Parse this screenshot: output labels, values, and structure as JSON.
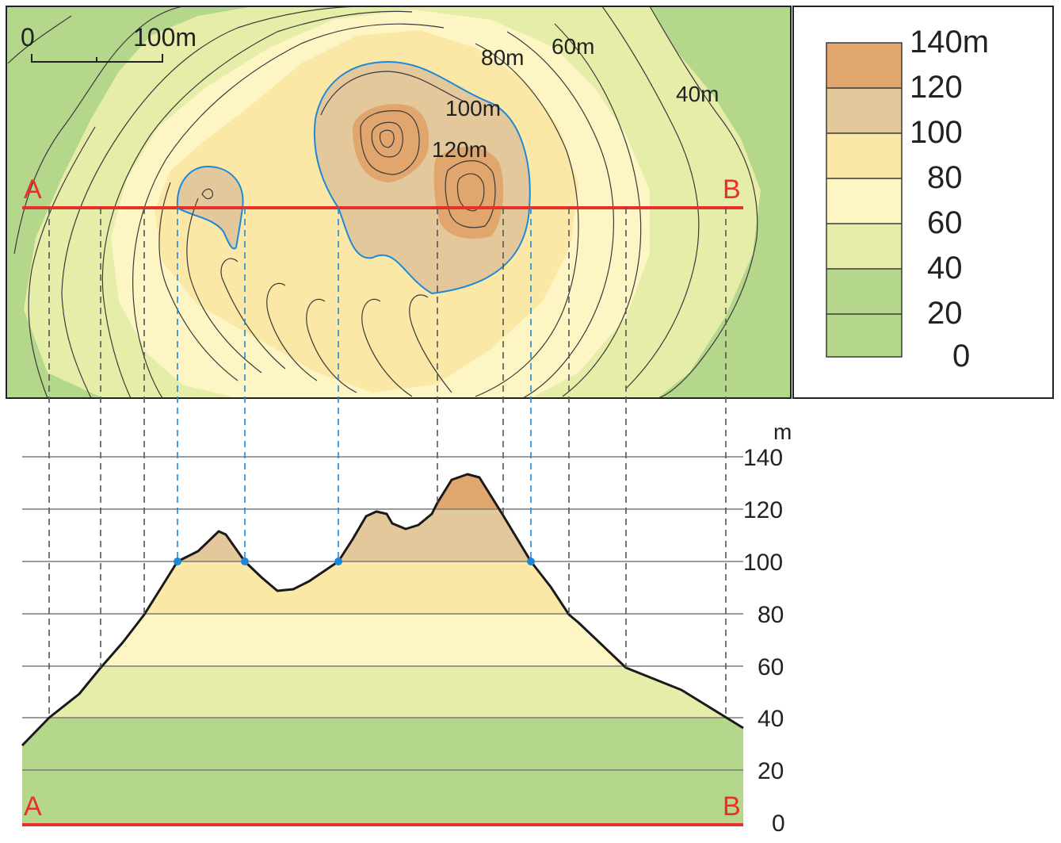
{
  "map": {
    "scale_start": "0",
    "scale_end": "100m",
    "point_a": "A",
    "point_b": "B",
    "contour_labels": [
      "80m",
      "60m",
      "40m",
      "100m",
      "120m"
    ]
  },
  "legend": {
    "bands": [
      {
        "label": "140m",
        "color": "#e0a66d"
      },
      {
        "label": "120",
        "color": "#e3c89b"
      },
      {
        "label": "100",
        "color": "#fbe8a6"
      },
      {
        "label": "80",
        "color": "#fdf6c4"
      },
      {
        "label": "60",
        "color": "#e6eda9"
      },
      {
        "label": "40",
        "color": "#b5d78c"
      },
      {
        "label": "20",
        "color": "#b5d78c"
      },
      {
        "label": "0",
        "color": ""
      }
    ]
  },
  "profile": {
    "unit": "m",
    "y_ticks": [
      "140",
      "120",
      "100",
      "80",
      "60",
      "40",
      "20",
      "0"
    ],
    "point_a": "A",
    "point_b": "B"
  },
  "colors": {
    "section_line": "#e8302a",
    "contour_100": "#1e88d8",
    "outline": "#1a1a1a"
  }
}
